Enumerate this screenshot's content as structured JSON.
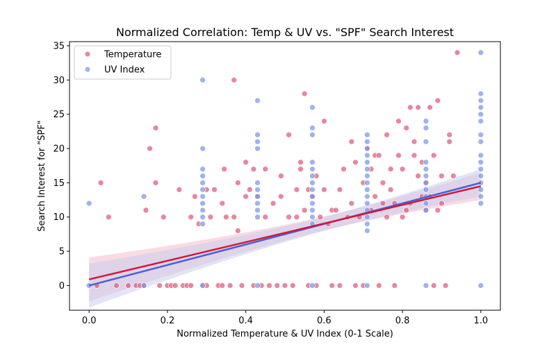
{
  "chart_data": {
    "type": "scatter",
    "title": "Normalized Correlation: Temp & UV vs. \"SPF\" Search Interest",
    "xlabel": "Normalized Temperature & UV Index (0-1 Scale)",
    "ylabel": "Search Interest for \"SPF\"",
    "xlim": [
      -0.05,
      1.05
    ],
    "ylim": [
      -3.6,
      35.6
    ],
    "xticks": [
      "0.0",
      "0.2",
      "0.4",
      "0.6",
      "0.8",
      "1.0"
    ],
    "yticks": [
      "0",
      "5",
      "10",
      "15",
      "20",
      "25",
      "30",
      "35"
    ],
    "grid": false,
    "legend": "top-left",
    "series": [
      {
        "name": "Temperature",
        "color": "#dc5a78",
        "trend": {
          "x": [
            0,
            1
          ],
          "y": [
            0.9,
            14.5
          ],
          "color": "#d0173a",
          "band_color": "#f4b8c4"
        },
        "points": [
          [
            0.02,
            0
          ],
          [
            0.03,
            15
          ],
          [
            0.05,
            10
          ],
          [
            0.07,
            0
          ],
          [
            0.1,
            0
          ],
          [
            0.12,
            0
          ],
          [
            0.13,
            0
          ],
          [
            0.14,
            0
          ],
          [
            0.145,
            11
          ],
          [
            0.155,
            20
          ],
          [
            0.17,
            23
          ],
          [
            0.17,
            15
          ],
          [
            0.18,
            0
          ],
          [
            0.19,
            10
          ],
          [
            0.2,
            0
          ],
          [
            0.21,
            0
          ],
          [
            0.22,
            0
          ],
          [
            0.23,
            14
          ],
          [
            0.24,
            0
          ],
          [
            0.25,
            0
          ],
          [
            0.26,
            10
          ],
          [
            0.26,
            0
          ],
          [
            0.27,
            13
          ],
          [
            0.28,
            9
          ],
          [
            0.29,
            0
          ],
          [
            0.3,
            14
          ],
          [
            0.3,
            0
          ],
          [
            0.31,
            10
          ],
          [
            0.32,
            14
          ],
          [
            0.33,
            0
          ],
          [
            0.34,
            12
          ],
          [
            0.34,
            0
          ],
          [
            0.345,
            17
          ],
          [
            0.35,
            10
          ],
          [
            0.36,
            0
          ],
          [
            0.37,
            30
          ],
          [
            0.37,
            10
          ],
          [
            0.38,
            15
          ],
          [
            0.38,
            8
          ],
          [
            0.39,
            0
          ],
          [
            0.4,
            13
          ],
          [
            0.4,
            18
          ],
          [
            0.41,
            14
          ],
          [
            0.42,
            0
          ],
          [
            0.42,
            17
          ],
          [
            0.43,
            13
          ],
          [
            0.44,
            0
          ],
          [
            0.45,
            17
          ],
          [
            0.45,
            10
          ],
          [
            0.46,
            0
          ],
          [
            0.47,
            12
          ],
          [
            0.48,
            0
          ],
          [
            0.49,
            16
          ],
          [
            0.49,
            13
          ],
          [
            0.5,
            0
          ],
          [
            0.51,
            22
          ],
          [
            0.51,
            10
          ],
          [
            0.52,
            0
          ],
          [
            0.53,
            14
          ],
          [
            0.53,
            10
          ],
          [
            0.54,
            17
          ],
          [
            0.54,
            18
          ],
          [
            0.55,
            11
          ],
          [
            0.55,
            28
          ],
          [
            0.56,
            14
          ],
          [
            0.56,
            0
          ],
          [
            0.57,
            13
          ],
          [
            0.58,
            16
          ],
          [
            0.58,
            0
          ],
          [
            0.59,
            10
          ],
          [
            0.6,
            24
          ],
          [
            0.6,
            14
          ],
          [
            0.61,
            9
          ],
          [
            0.62,
            11
          ],
          [
            0.62,
            0
          ],
          [
            0.63,
            11
          ],
          [
            0.64,
            14
          ],
          [
            0.64,
            0
          ],
          [
            0.65,
            17
          ],
          [
            0.66,
            10
          ],
          [
            0.67,
            12
          ],
          [
            0.67,
            21
          ],
          [
            0.68,
            18
          ],
          [
            0.68,
            0
          ],
          [
            0.69,
            10
          ],
          [
            0.7,
            15
          ],
          [
            0.7,
            0
          ],
          [
            0.71,
            20
          ],
          [
            0.72,
            17
          ],
          [
            0.72,
            11
          ],
          [
            0.73,
            13
          ],
          [
            0.73,
            19
          ],
          [
            0.74,
            19
          ],
          [
            0.74,
            0
          ],
          [
            0.75,
            15
          ],
          [
            0.75,
            12
          ],
          [
            0.76,
            22
          ],
          [
            0.76,
            10
          ],
          [
            0.77,
            14
          ],
          [
            0.77,
            17
          ],
          [
            0.78,
            12
          ],
          [
            0.78,
            0
          ],
          [
            0.79,
            19
          ],
          [
            0.79,
            24
          ],
          [
            0.8,
            17
          ],
          [
            0.8,
            10
          ],
          [
            0.81,
            23
          ],
          [
            0.81,
            11
          ],
          [
            0.82,
            26
          ],
          [
            0.82,
            12
          ],
          [
            0.83,
            21
          ],
          [
            0.83,
            19
          ],
          [
            0.84,
            26
          ],
          [
            0.84,
            16
          ],
          [
            0.85,
            13
          ],
          [
            0.85,
            18
          ],
          [
            0.86,
            11
          ],
          [
            0.86,
            15
          ],
          [
            0.87,
            26
          ],
          [
            0.87,
            13
          ],
          [
            0.88,
            19
          ],
          [
            0.88,
            0
          ],
          [
            0.89,
            27
          ],
          [
            0.89,
            11
          ],
          [
            0.9,
            16
          ],
          [
            0.9,
            12
          ],
          [
            0.91,
            0
          ],
          [
            0.92,
            22
          ],
          [
            0.92,
            21
          ],
          [
            0.93,
            16
          ],
          [
            0.94,
            34
          ]
        ]
      },
      {
        "name": "UV Index",
        "color": "#7b96e6",
        "trend": {
          "x": [
            0,
            1
          ],
          "y": [
            0,
            15
          ],
          "color": "#4a5fd6",
          "band_color": "#c4ccf0"
        },
        "points": [
          [
            0,
            12
          ],
          [
            0,
            0
          ],
          [
            0.14,
            13
          ],
          [
            0.14,
            0
          ],
          [
            0.29,
            30
          ],
          [
            0.29,
            20
          ],
          [
            0.29,
            17
          ],
          [
            0.29,
            16
          ],
          [
            0.29,
            15
          ],
          [
            0.29,
            14
          ],
          [
            0.29,
            13
          ],
          [
            0.29,
            12
          ],
          [
            0.29,
            11
          ],
          [
            0.29,
            10
          ],
          [
            0.29,
            9
          ],
          [
            0.29,
            0
          ],
          [
            0.43,
            27
          ],
          [
            0.43,
            22
          ],
          [
            0.43,
            21
          ],
          [
            0.43,
            20
          ],
          [
            0.43,
            15
          ],
          [
            0.43,
            14
          ],
          [
            0.43,
            13
          ],
          [
            0.43,
            12
          ],
          [
            0.43,
            11
          ],
          [
            0.43,
            10
          ],
          [
            0.43,
            0
          ],
          [
            0.57,
            26
          ],
          [
            0.57,
            23
          ],
          [
            0.57,
            22
          ],
          [
            0.57,
            18
          ],
          [
            0.57,
            17
          ],
          [
            0.57,
            16
          ],
          [
            0.57,
            15
          ],
          [
            0.57,
            14
          ],
          [
            0.57,
            13
          ],
          [
            0.57,
            12
          ],
          [
            0.57,
            11
          ],
          [
            0.57,
            10
          ],
          [
            0.57,
            9
          ],
          [
            0.57,
            0
          ],
          [
            0.71,
            22
          ],
          [
            0.71,
            21
          ],
          [
            0.71,
            20
          ],
          [
            0.71,
            19
          ],
          [
            0.71,
            18
          ],
          [
            0.71,
            17
          ],
          [
            0.71,
            16
          ],
          [
            0.71,
            15
          ],
          [
            0.71,
            14
          ],
          [
            0.71,
            13
          ],
          [
            0.71,
            12
          ],
          [
            0.71,
            11
          ],
          [
            0.71,
            10
          ],
          [
            0.71,
            9
          ],
          [
            0.71,
            8
          ],
          [
            0.71,
            0
          ],
          [
            0.86,
            24
          ],
          [
            0.86,
            23
          ],
          [
            0.86,
            21
          ],
          [
            0.86,
            18
          ],
          [
            0.86,
            17
          ],
          [
            0.86,
            16
          ],
          [
            0.86,
            15
          ],
          [
            0.86,
            14
          ],
          [
            0.86,
            13
          ],
          [
            0.86,
            12
          ],
          [
            0.86,
            11
          ],
          [
            0.86,
            0
          ],
          [
            1.0,
            34
          ],
          [
            1.0,
            28
          ],
          [
            1.0,
            27
          ],
          [
            1.0,
            26
          ],
          [
            1.0,
            25
          ],
          [
            1.0,
            24
          ],
          [
            1.0,
            22
          ],
          [
            1.0,
            21
          ],
          [
            1.0,
            19
          ],
          [
            1.0,
            18
          ],
          [
            1.0,
            17
          ],
          [
            1.0,
            16
          ],
          [
            1.0,
            15
          ],
          [
            1.0,
            14
          ],
          [
            1.0,
            13
          ],
          [
            1.0,
            12
          ],
          [
            1.0,
            0
          ]
        ]
      }
    ]
  }
}
